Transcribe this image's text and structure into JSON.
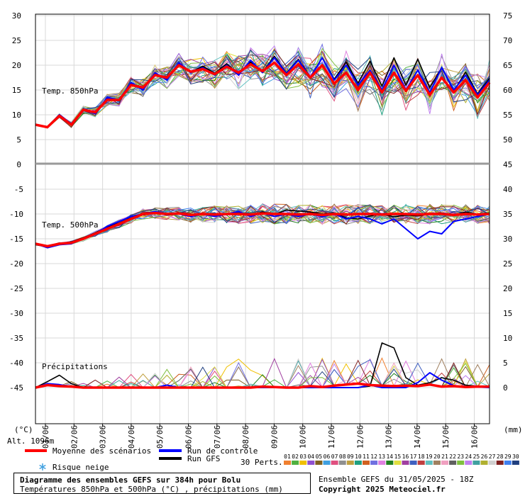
{
  "chart_data": {
    "type": "line",
    "title": "Diagramme des ensembles GEFS sur 384h pour Bolu",
    "subtitle": "Températures 850hPa et 500hPa (°C) , précipitations (mm)",
    "ensemble_info": "Ensemble GEFS du 31/05/2025 - 18Z",
    "copyright": "Copyright 2025 Meteociel.fr",
    "altitude_label": "Alt. 1096m",
    "left_unit": "(°C)",
    "right_unit": "(mm)",
    "panel_labels": {
      "t850": "Temp. 850hPa",
      "t500": "Temp. 500hPa",
      "precip": "Précipitations"
    },
    "left_ticks_top": [
      30,
      25,
      20,
      15,
      10,
      5,
      0
    ],
    "right_ticks_top": [
      75,
      70,
      65,
      60,
      55,
      50,
      45
    ],
    "left_ticks_bottom": [
      -5,
      -10,
      -15,
      -20,
      -25,
      -30,
      -35,
      -40,
      -45
    ],
    "right_ticks_bottom": [
      40,
      35,
      30,
      25,
      20,
      15,
      10,
      5,
      0
    ],
    "x_labels": [
      "01/06",
      "02/06",
      "03/06",
      "04/06",
      "05/06",
      "06/06",
      "07/06",
      "08/06",
      "09/06",
      "10/06",
      "11/06",
      "12/06",
      "13/06",
      "14/06",
      "15/06",
      "16/06"
    ],
    "legend": {
      "mean": "Moyenne des scénarios",
      "control": "Run de contrôle",
      "gfs": "Run GFS",
      "snow": "Risque neige",
      "perts": "30 Perts.",
      "pert_numbers": [
        "01",
        "02",
        "03",
        "04",
        "05",
        "06",
        "07",
        "08",
        "09",
        "10",
        "11",
        "12",
        "13",
        "14",
        "15",
        "16",
        "17",
        "18",
        "19",
        "20",
        "21",
        "22",
        "23",
        "24",
        "25",
        "26",
        "27",
        "28",
        "29",
        "30"
      ]
    },
    "colors": {
      "mean": "#ff0000",
      "control": "#0000ff",
      "gfs": "#000000",
      "perts": [
        "#f08030",
        "#50b040",
        "#f0c000",
        "#9050d0",
        "#806020",
        "#40a0e0",
        "#e05080",
        "#909090",
        "#c0a040",
        "#20a080",
        "#d06020",
        "#7070e0",
        "#e080e0",
        "#208020",
        "#e0e040",
        "#a040a0",
        "#4060c0",
        "#c04040",
        "#60c0c0",
        "#a08060",
        "#f0a0c0",
        "#606060",
        "#80c040",
        "#c080f0",
        "#40a0a0",
        "#b0b030",
        "#d0d0d0",
        "#802020",
        "#4080f0",
        "#204080"
      ]
    },
    "series": [
      {
        "name": "Moyenne des scénarios",
        "t850": [
          8,
          7.5,
          9.8,
          8,
          11,
          10.5,
          13,
          13,
          16,
          15.5,
          18,
          17.5,
          20,
          18.7,
          19.2,
          18.2,
          19.7,
          18.5,
          20.2,
          18.8,
          20.5,
          18,
          20.2,
          17.5,
          20,
          16.3,
          18.5,
          15,
          18.5,
          14.5,
          18.5,
          14.8,
          18,
          14,
          17.5,
          14.5,
          17,
          13.5,
          16.5
        ],
        "t500": [
          -16,
          -16.5,
          -16,
          -15.8,
          -15,
          -14,
          -13,
          -12,
          -11,
          -10,
          -9.8,
          -10,
          -9.9,
          -10.2,
          -10,
          -10.1,
          -10,
          -10,
          -10.1,
          -9.9,
          -10,
          -10,
          -10.1,
          -10,
          -10.2,
          -10,
          -10.1,
          -10,
          -10,
          -10.1,
          -10,
          -10,
          -10.1,
          -10,
          -10,
          -10.2,
          -10,
          -10.1,
          -10
        ],
        "precip": [
          0,
          0.5,
          0.3,
          0.2,
          0,
          0,
          0,
          0,
          0,
          0,
          0,
          0,
          0,
          0,
          0,
          0,
          0,
          0,
          0,
          0.2,
          0.1,
          0,
          0,
          0.3,
          0.1,
          0.4,
          0.6,
          0.8,
          0.5,
          0.4,
          0.3,
          0.4,
          0.3,
          0.6,
          0.2,
          0.3,
          0.1,
          0.2,
          0.2
        ]
      },
      {
        "name": "Run de contrôle",
        "t850": [
          8,
          7.5,
          10,
          8.2,
          11,
          10.2,
          13.5,
          13,
          16.5,
          15,
          18.5,
          17,
          20.5,
          18.5,
          19.5,
          18,
          20,
          18,
          21,
          18.5,
          21.5,
          18.3,
          21,
          17.5,
          21.5,
          17,
          20,
          16,
          19,
          15,
          20,
          15,
          19,
          14.5,
          19.5,
          15,
          18,
          14,
          17
        ],
        "t500": [
          -16,
          -16.8,
          -16.2,
          -16,
          -15,
          -14,
          -12.5,
          -11.5,
          -10.5,
          -10,
          -9.5,
          -10,
          -10,
          -10.5,
          -10,
          -10.5,
          -10,
          -9.5,
          -10.5,
          -9.8,
          -10.5,
          -10,
          -10.5,
          -10,
          -10.5,
          -10,
          -11,
          -10.5,
          -11,
          -12,
          -11,
          -13,
          -15,
          -13.5,
          -14,
          -11.5,
          -11,
          -10.5,
          -10
        ],
        "precip": [
          0,
          0.8,
          0.6,
          0.2,
          0,
          0,
          0,
          0,
          0,
          0,
          0,
          0.5,
          0,
          0,
          0,
          0,
          0,
          0,
          0,
          0,
          0,
          0,
          0,
          0,
          0,
          0,
          0,
          0,
          0.5,
          0,
          0,
          0,
          1,
          3,
          1.5,
          0.4,
          0.2,
          0.1,
          0
        ]
      },
      {
        "name": "Run GFS",
        "t850": [
          8,
          7.6,
          9.7,
          8.1,
          11.2,
          10.4,
          13.2,
          12.8,
          16.2,
          15.6,
          18.2,
          17.2,
          20.4,
          18.6,
          19.8,
          18.4,
          20.3,
          18.2,
          20.6,
          18.6,
          21.8,
          18.4,
          21.2,
          17.6,
          21.5,
          17.2,
          20.6,
          16.4,
          20.8,
          15.8,
          21.5,
          16,
          21.2,
          15.5,
          19.5,
          14.8,
          18.6,
          14.2,
          17.4
        ],
        "t500": [
          -16.2,
          -16.6,
          -16,
          -15.6,
          -14.8,
          -13.8,
          -12.6,
          -11.8,
          -10.8,
          -10.2,
          -9.8,
          -10.2,
          -10,
          -10.4,
          -10.1,
          -10.4,
          -10,
          -9.8,
          -10.2,
          -9.6,
          -10.1,
          -9.2,
          -9.4,
          -9.6,
          -10,
          -9.8,
          -10.8,
          -11,
          -10.4,
          -10,
          -10.6,
          -10.2,
          -10.4,
          -10,
          -9.8,
          -10.2,
          -9.6,
          -10,
          -9.8
        ],
        "precip": [
          0,
          1.2,
          2.5,
          0.8,
          0,
          0,
          0,
          0,
          0,
          0,
          0,
          0,
          0,
          0,
          0,
          0,
          0,
          0,
          0,
          0,
          0,
          0,
          0,
          0,
          0,
          0,
          0,
          0,
          0.3,
          9,
          8,
          2,
          0.5,
          1,
          2,
          1.5,
          0.5,
          0.3,
          0.2
        ]
      }
    ]
  }
}
